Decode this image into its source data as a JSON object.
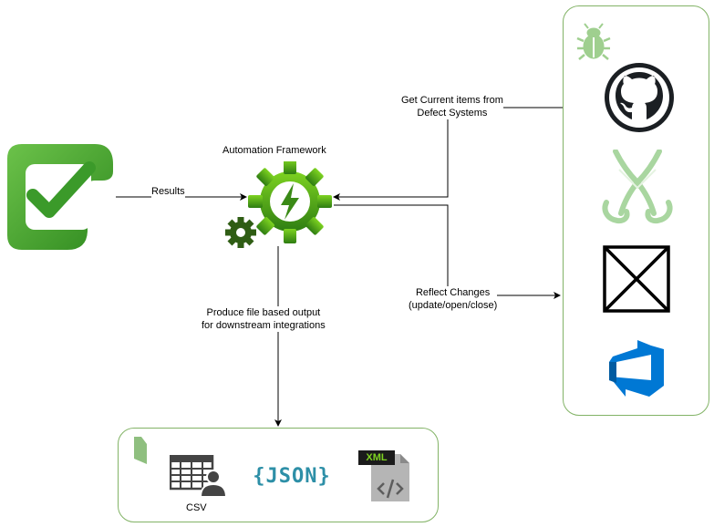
{
  "diagram": {
    "framework_label": "Automation Framework",
    "results_label": "Results",
    "get_items_label_line1": "Get Current items from",
    "get_items_label_line2": "Defect Systems",
    "reflect_label_line1": "Reflect Changes",
    "reflect_label_line2": "(update/open/close)",
    "produce_label_line1": "Produce file based output",
    "produce_label_line2": "for downstream integrations",
    "csv_label": "CSV",
    "json_label": "{JSON}",
    "xml_label": "XML"
  },
  "icons": {
    "test_results": "checkmark-app-icon",
    "framework": "gear-lightning-icon",
    "bug": "bug-icon",
    "github": "github-icon",
    "defect_system_2": "green-x-tool-icon",
    "defect_system_3": "boxed-x-icon",
    "azure_devops": "azure-devops-icon",
    "csv": "csv-table-user-icon",
    "xml": "xml-file-icon",
    "file": "file-icon"
  },
  "colors": {
    "panel_border": "#82b366",
    "framework_green": "#3a8a16",
    "check_green": "#4aa02c",
    "azure_blue": "#0078d4"
  }
}
